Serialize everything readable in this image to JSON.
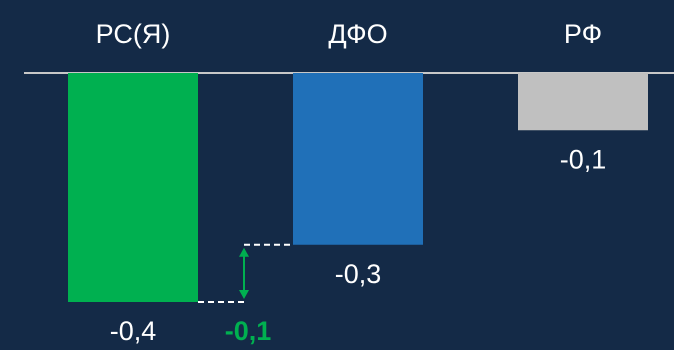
{
  "chart_data": {
    "type": "bar",
    "categories": [
      "РС(Я)",
      "ДФО",
      "РФ"
    ],
    "values": [
      -0.4,
      -0.3,
      -0.1
    ],
    "value_labels": [
      "-0,4",
      "-0,3",
      "-0,1"
    ],
    "ylim": [
      -0.4,
      0
    ],
    "colors": [
      "#00b050",
      "#2070b8",
      "#c0c0c0"
    ],
    "difference": {
      "between": [
        "РС(Я)",
        "ДФО"
      ],
      "value": -0.1,
      "label": "-0,1",
      "color": "#00b050"
    },
    "grid": false,
    "legend": "none",
    "axis_line_color": "#c8c8c8",
    "text_color": "#ffffff"
  }
}
